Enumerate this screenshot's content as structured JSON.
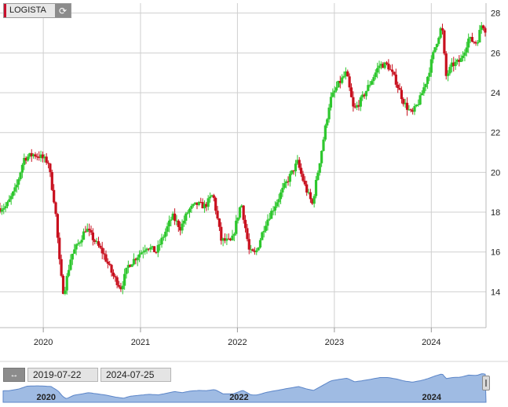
{
  "symbol": {
    "name": "LOGISTA",
    "refresh_icon": "refresh-icon"
  },
  "range": {
    "icon": "range-arrows-icon",
    "start": "2019-07-22",
    "end": "2024-07-25"
  },
  "colors": {
    "up": "#2ec72e",
    "down": "#c8101e",
    "grid": "#cfcfcf",
    "navigator_fill": "#9fbbe3",
    "navigator_line": "#5b85c8"
  },
  "navigator": {
    "ticks": [
      "2020",
      "2022",
      "2024"
    ]
  },
  "chart_data": {
    "type": "candlestick",
    "title": "",
    "xlabel": "",
    "ylabel": "",
    "x_ticks": [
      "2020",
      "2021",
      "2022",
      "2023",
      "2024"
    ],
    "y_ticks": [
      14,
      16,
      18,
      20,
      22,
      24,
      26,
      28
    ],
    "ylim": [
      12.2,
      28.5
    ],
    "grid": true,
    "y_axis_position": "right",
    "x_range": [
      "2019-07-22",
      "2024-07-25"
    ],
    "close_path": [
      [
        "2019-07-22",
        18.2
      ],
      [
        "2019-08-15",
        18.3
      ],
      [
        "2019-09-20",
        19.2
      ],
      [
        "2019-10-20",
        20.7
      ],
      [
        "2019-11-25",
        20.9
      ],
      [
        "2019-12-20",
        20.8
      ],
      [
        "2020-01-20",
        20.5
      ],
      [
        "2020-02-15",
        18.2
      ],
      [
        "2020-03-05",
        15.0
      ],
      [
        "2020-03-18",
        13.9
      ],
      [
        "2020-04-15",
        15.8
      ],
      [
        "2020-05-15",
        16.5
      ],
      [
        "2020-06-10",
        17.2
      ],
      [
        "2020-07-10",
        16.6
      ],
      [
        "2020-08-15",
        15.9
      ],
      [
        "2020-09-20",
        14.8
      ],
      [
        "2020-10-20",
        14.2
      ],
      [
        "2020-11-15",
        15.3
      ],
      [
        "2020-12-20",
        15.8
      ],
      [
        "2021-01-25",
        16.3
      ],
      [
        "2021-03-01",
        16.0
      ],
      [
        "2021-04-01",
        16.9
      ],
      [
        "2021-05-01",
        17.8
      ],
      [
        "2021-06-01",
        17.2
      ],
      [
        "2021-07-01",
        18.1
      ],
      [
        "2021-08-01",
        18.4
      ],
      [
        "2021-09-01",
        18.3
      ],
      [
        "2021-10-01",
        18.9
      ],
      [
        "2021-11-01",
        16.6
      ],
      [
        "2021-12-10",
        16.5
      ],
      [
        "2022-01-15",
        18.5
      ],
      [
        "2022-02-15",
        16.0
      ],
      [
        "2022-03-10",
        15.9
      ],
      [
        "2022-04-15",
        17.4
      ],
      [
        "2022-05-20",
        18.3
      ],
      [
        "2022-07-01",
        19.4
      ],
      [
        "2022-08-15",
        20.5
      ],
      [
        "2022-09-15",
        19.2
      ],
      [
        "2022-10-10",
        18.4
      ],
      [
        "2022-11-15",
        21.2
      ],
      [
        "2022-12-15",
        23.6
      ],
      [
        "2023-01-15",
        24.4
      ],
      [
        "2023-02-15",
        25.0
      ],
      [
        "2023-03-15",
        23.1
      ],
      [
        "2023-04-15",
        23.7
      ],
      [
        "2023-05-20",
        24.6
      ],
      [
        "2023-06-20",
        25.4
      ],
      [
        "2023-07-20",
        25.4
      ],
      [
        "2023-08-20",
        24.6
      ],
      [
        "2023-09-20",
        23.5
      ],
      [
        "2023-10-20",
        22.9
      ],
      [
        "2023-11-20",
        23.7
      ],
      [
        "2023-12-20",
        24.9
      ],
      [
        "2024-01-15",
        26.3
      ],
      [
        "2024-02-10",
        27.4
      ],
      [
        "2024-02-25",
        24.8
      ],
      [
        "2024-03-20",
        25.4
      ],
      [
        "2024-04-20",
        25.6
      ],
      [
        "2024-05-20",
        26.7
      ],
      [
        "2024-06-20",
        26.5
      ],
      [
        "2024-07-10",
        27.5
      ],
      [
        "2024-07-25",
        27.1
      ]
    ]
  }
}
